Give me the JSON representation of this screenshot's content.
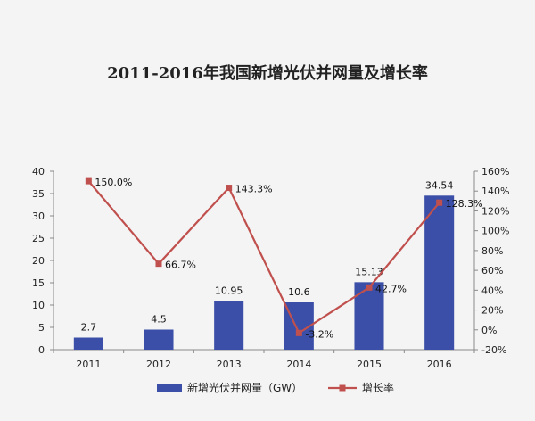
{
  "chart_data": {
    "type": "bar+line",
    "title": "2011-2016年我国新增光伏并网量及增长率",
    "categories": [
      "2011",
      "2012",
      "2013",
      "2014",
      "2015",
      "2016"
    ],
    "series": [
      {
        "name": "新增光伏并网量（GW）",
        "kind": "bar",
        "axis": "left",
        "color": "#3b4fa8",
        "values": [
          2.7,
          4.5,
          10.95,
          10.6,
          15.13,
          34.54
        ],
        "labels": [
          "2.7",
          "4.5",
          "10.95",
          "10.6",
          "15.13",
          "34.54"
        ]
      },
      {
        "name": "增长率",
        "kind": "line",
        "axis": "right",
        "color": "#c0504d",
        "values": [
          150.0,
          66.7,
          143.3,
          -3.2,
          42.7,
          128.3
        ],
        "labels": [
          "150.0%",
          "66.7%",
          "143.3%",
          "-3.2%",
          "42.7%",
          "128.3%"
        ]
      }
    ],
    "y_left": {
      "min": 0,
      "max": 40,
      "ticks": [
        "0",
        "5",
        "10",
        "15",
        "20",
        "25",
        "30",
        "35",
        "40"
      ]
    },
    "y_right": {
      "min": -20,
      "max": 160,
      "ticks": [
        "-20%",
        "0%",
        "20%",
        "40%",
        "60%",
        "80%",
        "100%",
        "120%",
        "140%",
        "160%"
      ]
    },
    "grid": false,
    "legend_position": "bottom"
  }
}
